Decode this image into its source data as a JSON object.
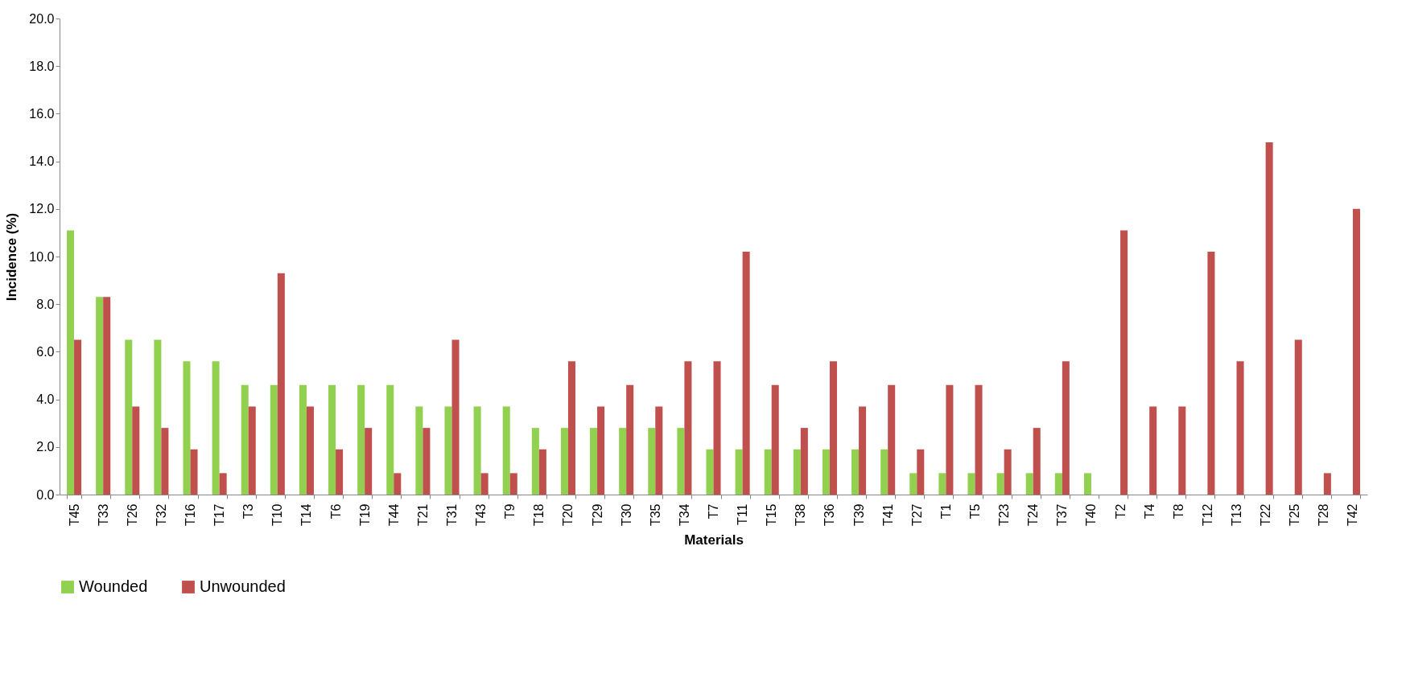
{
  "chart_data": {
    "type": "bar",
    "xlabel": "Materials",
    "ylabel": "Incidence (%)",
    "categories": [
      "T45",
      "T33",
      "T26",
      "T32",
      "T16",
      "T17",
      "T3",
      "T10",
      "T14",
      "T6",
      "T19",
      "T44",
      "T21",
      "T31",
      "T43",
      "T9",
      "T18",
      "T20",
      "T29",
      "T30",
      "T35",
      "T34",
      "T7",
      "T11",
      "T15",
      "T38",
      "T36",
      "T39",
      "T41",
      "T27",
      "T1",
      "T5",
      "T23",
      "T24",
      "T37",
      "T40",
      "T2",
      "T4",
      "T8",
      "T12",
      "T13",
      "T22",
      "T25",
      "T28",
      "T42"
    ],
    "series": [
      {
        "name": "Wounded",
        "color": "#92d050",
        "values": [
          11.1,
          8.3,
          6.5,
          6.5,
          5.6,
          5.6,
          4.6,
          4.6,
          4.6,
          4.6,
          4.6,
          4.6,
          3.7,
          3.7,
          3.7,
          3.7,
          2.8,
          2.8,
          2.8,
          2.8,
          2.8,
          2.8,
          1.9,
          1.9,
          1.9,
          1.9,
          1.9,
          1.9,
          1.9,
          0.9,
          0.9,
          0.9,
          0.9,
          0.9,
          0.9,
          0.9,
          0,
          0,
          0,
          0,
          0,
          0,
          0,
          0,
          0
        ]
      },
      {
        "name": "Unwounded",
        "color": "#c0504d",
        "values": [
          6.5,
          8.3,
          3.7,
          2.8,
          1.9,
          0.9,
          3.7,
          9.3,
          3.7,
          1.9,
          2.8,
          0.9,
          2.8,
          6.5,
          0.9,
          0.9,
          1.9,
          5.6,
          3.7,
          4.6,
          3.7,
          5.6,
          5.6,
          10.2,
          4.6,
          2.8,
          5.6,
          3.7,
          4.6,
          1.9,
          4.6,
          4.6,
          1.9,
          2.8,
          5.6,
          0,
          11.1,
          3.7,
          3.7,
          10.2,
          5.6,
          14.8,
          6.5,
          0.9,
          12.0
        ]
      }
    ],
    "ylim": [
      0,
      20
    ],
    "yticks": [
      {
        "value": 0,
        "label": "0.0"
      },
      {
        "value": 2,
        "label": "2.0"
      },
      {
        "value": 4,
        "label": "4.0"
      },
      {
        "value": 6,
        "label": "6.0"
      },
      {
        "value": 8,
        "label": "8.0"
      },
      {
        "value": 10,
        "label": "10.0"
      },
      {
        "value": 12,
        "label": "12.0"
      },
      {
        "value": 14,
        "label": "14.0"
      },
      {
        "value": 16,
        "label": "16.0"
      },
      {
        "value": 18,
        "label": "18.0"
      },
      {
        "value": 20,
        "label": "20.0"
      }
    ],
    "grid": false,
    "legend": "bottom"
  }
}
